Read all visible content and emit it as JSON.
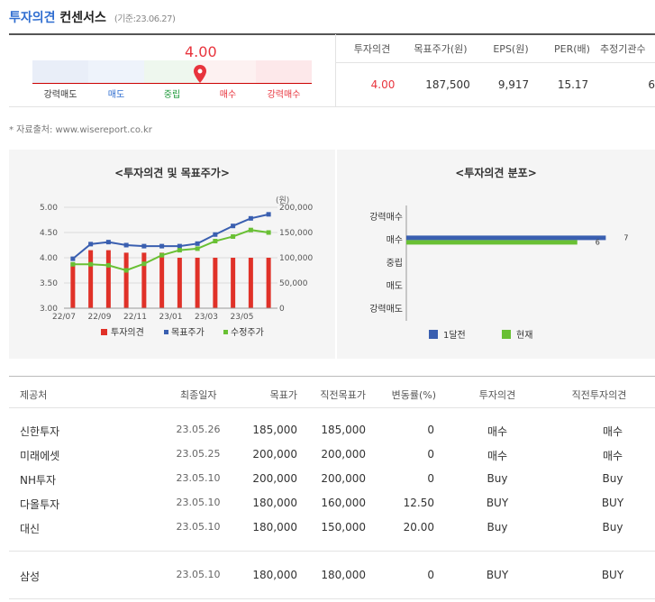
{
  "header": {
    "title_part1": "투자의견",
    "title_part2": "컨센서스",
    "date": "(기준:23.06.27)"
  },
  "gauge": {
    "value": "4.00",
    "levels": [
      "강력매도",
      "매도",
      "중립",
      "매수",
      "강력매수"
    ],
    "colors": [
      "#e9eef8",
      "#eef3fb",
      "#eef7ee",
      "#fdf1f1",
      "#fde8ea"
    ],
    "label_colors": [
      "#333333",
      "#2f6dd0",
      "#1f9a3b",
      "#e8343d",
      "#e8343d"
    ]
  },
  "summary": {
    "headers": [
      "투자의견",
      "목표주가(원)",
      "EPS(원)",
      "PER(배)",
      "추정기관수"
    ],
    "values": [
      "4.00",
      "187,500",
      "9,917",
      "15.17",
      "6"
    ]
  },
  "source": "* 자료출처: www.wisereport.co.kr",
  "chart1": {
    "title": "<투자의견 및 목표주가>",
    "unit": "(원)",
    "legend": [
      "투자의견",
      "목표주가",
      "수정주가"
    ]
  },
  "chart2": {
    "title": "<투자의견 분포>",
    "legend": [
      "1달전",
      "현재"
    ]
  },
  "chart_data": [
    {
      "type": "bar+line",
      "title": "<투자의견 및 목표주가>",
      "x": [
        "22/07",
        "22/08",
        "22/09",
        "22/10",
        "22/11",
        "22/12",
        "23/01",
        "23/02",
        "23/03",
        "23/04",
        "23/05",
        "23/06"
      ],
      "xticks": [
        "22/07",
        "22/09",
        "22/11",
        "23/01",
        "23/03",
        "23/05"
      ],
      "y_left_ticks": [
        "5.00",
        "4.50",
        "4.00",
        "3.50",
        "3.00"
      ],
      "y_right_ticks": [
        "200,000",
        "150,000",
        "100,000",
        "50,000",
        "0"
      ],
      "ylim_left": [
        3,
        5
      ],
      "ylim_right": [
        0,
        200000
      ],
      "unit_right": "(원)",
      "series": [
        {
          "name": "투자의견",
          "axis": "left",
          "kind": "bar",
          "color": "#e03128",
          "values": [
            3.9,
            4.15,
            4.15,
            4.1,
            4.1,
            4.1,
            4.0,
            4.0,
            4.0,
            4.0,
            4.0,
            4.0
          ]
        },
        {
          "name": "목표주가",
          "axis": "right",
          "kind": "line",
          "color": "#3a5fb0",
          "values": [
            98000,
            127000,
            131000,
            125000,
            123000,
            123000,
            123000,
            128000,
            146000,
            163000,
            178000,
            186000
          ]
        },
        {
          "name": "수정주가",
          "axis": "right",
          "kind": "line",
          "color": "#69c034",
          "values": [
            87000,
            87000,
            85000,
            75000,
            88000,
            105000,
            115000,
            118000,
            133000,
            142000,
            155000,
            150000
          ]
        }
      ]
    },
    {
      "type": "bar",
      "orientation": "horizontal",
      "title": "<투자의견 분포>",
      "categories": [
        "강력매수",
        "매수",
        "중립",
        "매도",
        "강력매도"
      ],
      "series": [
        {
          "name": "1달전",
          "color": "#3a5fb0",
          "values": [
            0,
            7,
            0,
            0,
            0
          ]
        },
        {
          "name": "현재",
          "color": "#69c034",
          "values": [
            0,
            6,
            0,
            0,
            0
          ]
        }
      ],
      "xlim": [
        0,
        8
      ]
    }
  ],
  "table": {
    "headers": [
      "제공처",
      "최종일자",
      "목표가",
      "직전목표가",
      "변동률(%)",
      "투자의견",
      "직전투자의견"
    ],
    "rows": [
      [
        "신한투자",
        "23.05.26",
        "185,000",
        "185,000",
        "0",
        "매수",
        "매수"
      ],
      [
        "미래에셋",
        "23.05.25",
        "200,000",
        "200,000",
        "0",
        "매수",
        "매수"
      ],
      [
        "NH투자",
        "23.05.10",
        "200,000",
        "200,000",
        "0",
        "Buy",
        "Buy"
      ],
      [
        "다올투자",
        "23.05.10",
        "180,000",
        "160,000",
        "12.50",
        "BUY",
        "BUY"
      ],
      [
        "대신",
        "23.05.10",
        "180,000",
        "150,000",
        "20.00",
        "Buy",
        "Buy"
      ]
    ],
    "last_row": [
      "삼성",
      "23.05.10",
      "180,000",
      "180,000",
      "0",
      "BUY",
      "BUY"
    ]
  }
}
